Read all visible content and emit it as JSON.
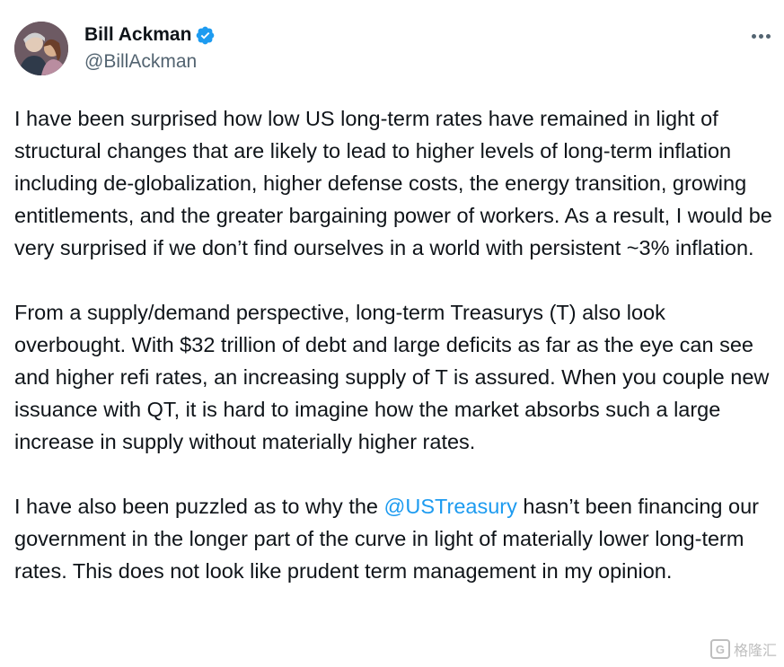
{
  "author": {
    "display_name": "Bill Ackman",
    "handle": "@BillAckman",
    "verified": true,
    "avatar_icon": "profile-photo"
  },
  "menu": {
    "icon": "more-horizontal-icon"
  },
  "tweet": {
    "p1": "I have been surprised how low US long-term rates have remained in light of structural changes that are likely to lead to higher levels of long-term inflation including de-globalization, higher defense costs, the energy transition, growing entitlements, and the greater bargaining power of workers. As a result, I would be very surprised if we don’t find ourselves in a world with persistent ~3% inflation.",
    "p2": "From a supply/demand perspective, long-term Treasurys (T) also look overbought. With $32 trillion of debt and large deficits as far as the eye can see and higher refi rates, an increasing supply of T is assured. When you couple new issuance with QT, it is hard to imagine how the market absorbs such a large increase in supply without materially higher rates.",
    "p3_before": "I have also been puzzled as to why the ",
    "p3_mention": "@USTreasury",
    "p3_after": " hasn’t been financing our government in the longer part of the curve in light of materially lower long-term rates. This does not look like prudent term management in my opinion."
  },
  "watermark": {
    "logo_text": "G",
    "text": "格隆汇"
  },
  "colors": {
    "text": "#0f1419",
    "secondary": "#536471",
    "link": "#1d9bf0",
    "verified": "#1d9bf0"
  }
}
